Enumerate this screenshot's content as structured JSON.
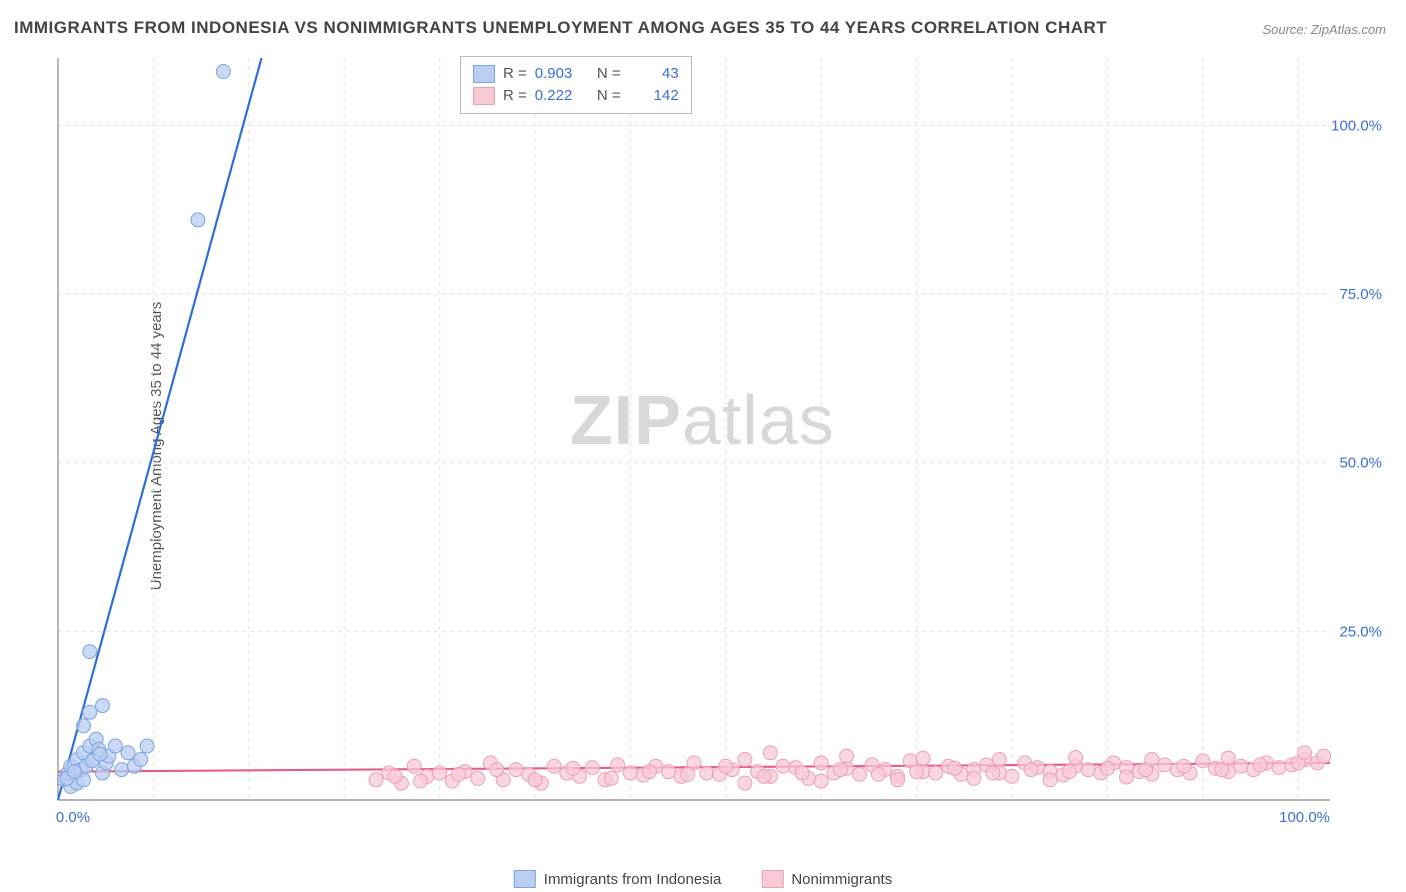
{
  "title": "IMMIGRANTS FROM INDONESIA VS NONIMMIGRANTS UNEMPLOYMENT AMONG AGES 35 TO 44 YEARS CORRELATION CHART",
  "source": "Source: ZipAtlas.com",
  "ylabel": "Unemployment Among Ages 35 to 44 years",
  "watermark_bold": "ZIP",
  "watermark_rest": "atlas",
  "chart": {
    "type": "scatter",
    "xlim": [
      0,
      100
    ],
    "ylim": [
      0,
      110
    ],
    "xtick_labels": [
      "0.0%",
      "100.0%"
    ],
    "ytick_labels": [
      "25.0%",
      "50.0%",
      "75.0%",
      "100.0%"
    ],
    "ytick_values": [
      25,
      50,
      75,
      100
    ],
    "grid_color": "#e2e2e2",
    "axis_color": "#888",
    "background": "#ffffff",
    "label_color": "#3b6fd6",
    "series": [
      {
        "name": "Immigrants from Indonesia",
        "color_fill": "#b9cef0",
        "color_stroke": "#7ea3e0",
        "line_color": "#2e6fd6",
        "marker_r": 7,
        "R": "0.903",
        "N": "43",
        "trend": {
          "x1": 0,
          "y1": 0,
          "x2": 16,
          "y2": 110
        },
        "points": [
          [
            0.5,
            3
          ],
          [
            0.8,
            4
          ],
          [
            1,
            5
          ],
          [
            1.2,
            3.5
          ],
          [
            1.5,
            6
          ],
          [
            1.8,
            4.5
          ],
          [
            2,
            7
          ],
          [
            2.2,
            5
          ],
          [
            2.5,
            8
          ],
          [
            2.8,
            6
          ],
          [
            3,
            9
          ],
          [
            3.2,
            7.5
          ],
          [
            3.5,
            4
          ],
          [
            3.8,
            5.5
          ],
          [
            4,
            6.5
          ],
          [
            4.5,
            8
          ],
          [
            5,
            4.5
          ],
          [
            5.5,
            7
          ],
          [
            6,
            5
          ],
          [
            6.5,
            6
          ],
          [
            1,
            2
          ],
          [
            1.5,
            2.5
          ],
          [
            2,
            3
          ],
          [
            0.7,
            3.2
          ],
          [
            1.3,
            4.2
          ],
          [
            2.7,
            5.8
          ],
          [
            3.3,
            6.8
          ],
          [
            2,
            11
          ],
          [
            2.5,
            13
          ],
          [
            3.5,
            14
          ],
          [
            2.5,
            22
          ],
          [
            11,
            86
          ],
          [
            13,
            108
          ],
          [
            7,
            8
          ]
        ]
      },
      {
        "name": "Nonimmigrants",
        "color_fill": "#f7c9d5",
        "color_stroke": "#eda0b6",
        "line_color": "#e75d87",
        "marker_r": 7,
        "R": "0.222",
        "N": "142",
        "trend": {
          "x1": 0,
          "y1": 4.2,
          "x2": 100,
          "y2": 5.5
        },
        "points": [
          [
            25,
            3
          ],
          [
            26,
            4
          ],
          [
            27,
            2.5
          ],
          [
            28,
            5
          ],
          [
            29,
            3.5
          ],
          [
            30,
            4
          ],
          [
            31,
            2.8
          ],
          [
            32,
            4.2
          ],
          [
            33,
            3.2
          ],
          [
            34,
            5.5
          ],
          [
            35,
            3
          ],
          [
            36,
            4.5
          ],
          [
            37,
            3.8
          ],
          [
            38,
            2.5
          ],
          [
            39,
            5
          ],
          [
            40,
            4
          ],
          [
            41,
            3.5
          ],
          [
            42,
            4.8
          ],
          [
            43,
            3
          ],
          [
            44,
            5.2
          ],
          [
            45,
            4
          ],
          [
            46,
            3.7
          ],
          [
            47,
            5
          ],
          [
            48,
            4.2
          ],
          [
            49,
            3.5
          ],
          [
            50,
            5.5
          ],
          [
            51,
            4
          ],
          [
            52,
            3.8
          ],
          [
            53,
            4.5
          ],
          [
            54,
            6
          ],
          [
            55,
            4.2
          ],
          [
            56,
            3.5
          ],
          [
            57,
            5
          ],
          [
            58,
            4.8
          ],
          [
            59,
            3.2
          ],
          [
            60,
            5.5
          ],
          [
            61,
            4
          ],
          [
            62,
            4.7
          ],
          [
            63,
            3.8
          ],
          [
            64,
            5.2
          ],
          [
            65,
            4.5
          ],
          [
            66,
            3.5
          ],
          [
            67,
            5.8
          ],
          [
            68,
            4.2
          ],
          [
            69,
            4
          ],
          [
            70,
            5
          ],
          [
            71,
            3.8
          ],
          [
            72,
            4.5
          ],
          [
            73,
            5.2
          ],
          [
            74,
            4
          ],
          [
            75,
            3.5
          ],
          [
            76,
            5.5
          ],
          [
            77,
            4.8
          ],
          [
            78,
            4.2
          ],
          [
            79,
            3.7
          ],
          [
            80,
            5
          ],
          [
            81,
            4.5
          ],
          [
            82,
            4
          ],
          [
            83,
            5.5
          ],
          [
            84,
            4.8
          ],
          [
            85,
            4.2
          ],
          [
            86,
            3.8
          ],
          [
            87,
            5.2
          ],
          [
            88,
            4.5
          ],
          [
            89,
            4
          ],
          [
            90,
            5.8
          ],
          [
            91,
            4.7
          ],
          [
            92,
            4.2
          ],
          [
            93,
            5
          ],
          [
            94,
            4.5
          ],
          [
            95,
            5.5
          ],
          [
            96,
            4.8
          ],
          [
            97,
            5.2
          ],
          [
            98,
            6
          ],
          [
            99,
            5.5
          ],
          [
            99.5,
            6.5
          ],
          [
            26.5,
            3.5
          ],
          [
            28.5,
            2.8
          ],
          [
            31.5,
            3.8
          ],
          [
            34.5,
            4.5
          ],
          [
            37.5,
            3
          ],
          [
            40.5,
            4.7
          ],
          [
            43.5,
            3.2
          ],
          [
            46.5,
            4.2
          ],
          [
            49.5,
            3.8
          ],
          [
            52.5,
            5
          ],
          [
            55.5,
            3.5
          ],
          [
            58.5,
            4
          ],
          [
            61.5,
            4.5
          ],
          [
            64.5,
            3.8
          ],
          [
            67.5,
            4.2
          ],
          [
            70.5,
            4.7
          ],
          [
            73.5,
            4
          ],
          [
            76.5,
            4.5
          ],
          [
            79.5,
            4.2
          ],
          [
            82.5,
            4.7
          ],
          [
            85.5,
            4.5
          ],
          [
            88.5,
            5
          ],
          [
            91.5,
            4.5
          ],
          [
            94.5,
            5.2
          ],
          [
            97.5,
            5.5
          ],
          [
            56,
            7
          ],
          [
            62,
            6.5
          ],
          [
            68,
            6.2
          ],
          [
            74,
            6
          ],
          [
            80,
            6.3
          ],
          [
            86,
            6
          ],
          [
            92,
            6.2
          ],
          [
            98,
            7
          ],
          [
            54,
            2.5
          ],
          [
            60,
            2.8
          ],
          [
            66,
            3
          ],
          [
            72,
            3.2
          ],
          [
            78,
            3
          ],
          [
            84,
            3.4
          ]
        ]
      }
    ],
    "bottom_legend": [
      {
        "swatch_fill": "#b9cef0",
        "swatch_stroke": "#7ea3e0",
        "label": "Immigrants from Indonesia"
      },
      {
        "swatch_fill": "#f7c9d5",
        "swatch_stroke": "#eda0b6",
        "label": "Nonimmigrants"
      }
    ]
  }
}
